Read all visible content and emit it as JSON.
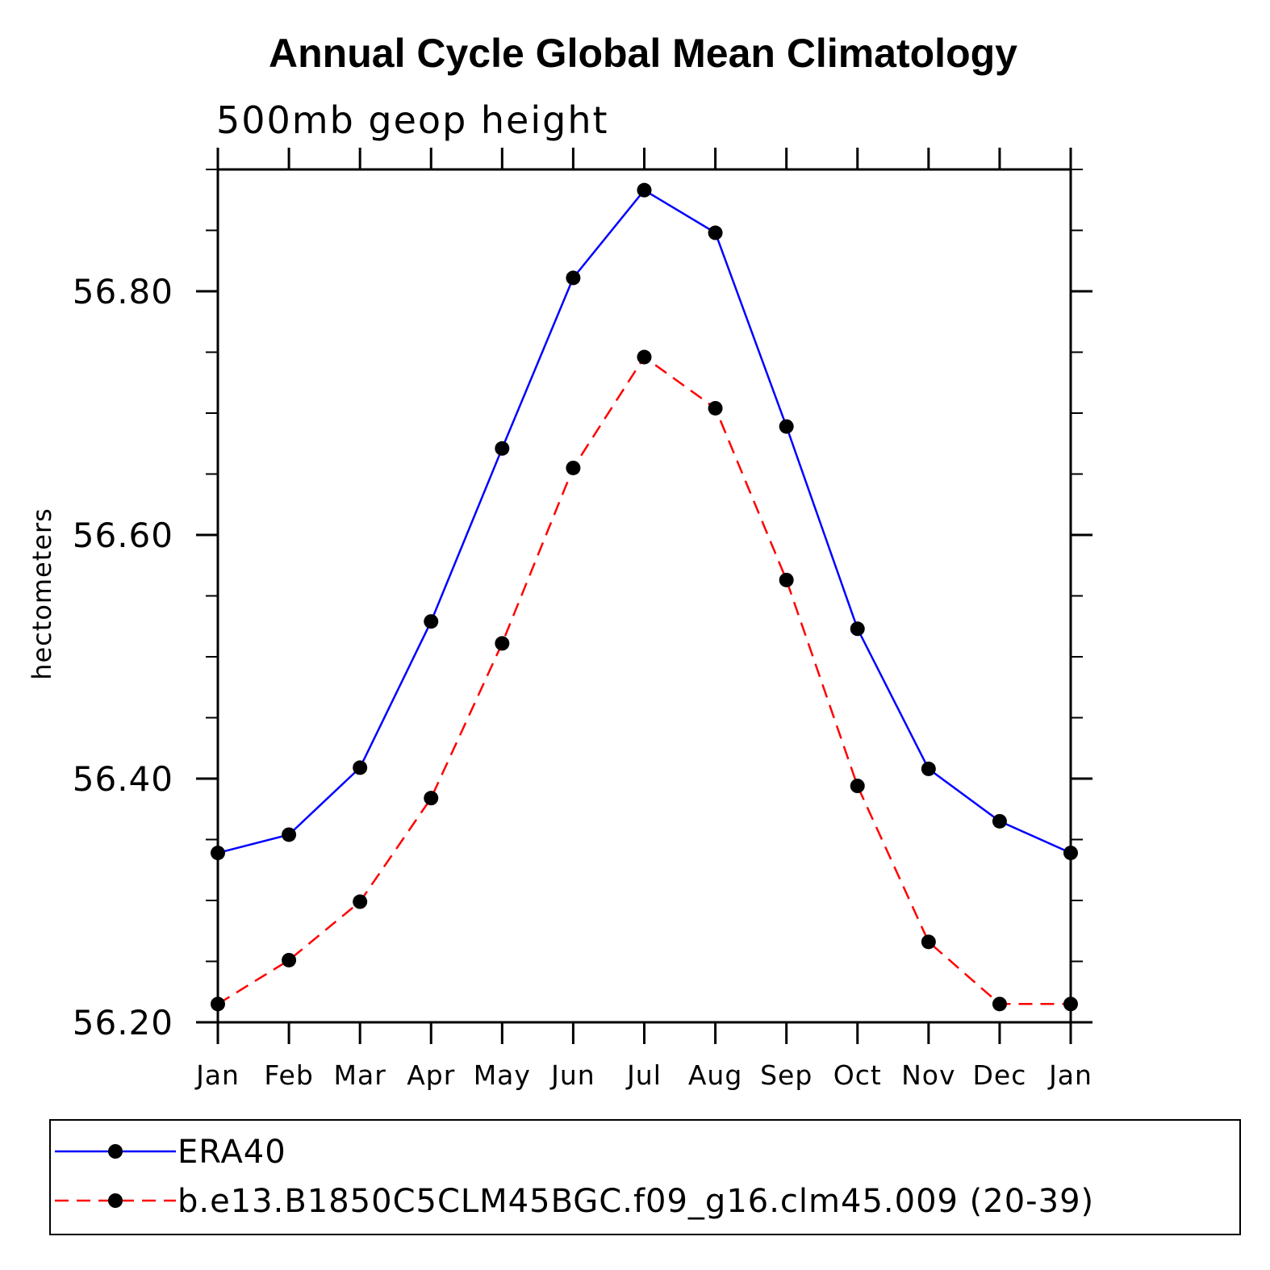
{
  "chart_data": {
    "type": "line",
    "title": "Annual Cycle Global Mean Climatology",
    "subtitle": "500mb geop height",
    "ylabel": "hectometers",
    "xlabel": "",
    "categories": [
      "Jan",
      "Feb",
      "Mar",
      "Apr",
      "May",
      "Jun",
      "Jul",
      "Aug",
      "Sep",
      "Oct",
      "Nov",
      "Dec",
      "Jan"
    ],
    "ylim": [
      56.2,
      56.9
    ],
    "yticks_major": [
      "56.20",
      "56.40",
      "56.60",
      "56.80"
    ],
    "yticks_major_values": [
      56.2,
      56.4,
      56.6,
      56.8
    ],
    "yticks_minor_step": 0.05,
    "grid": false,
    "legend_position": "bottom",
    "series": [
      {
        "name": "ERA40",
        "color": "#0000ff",
        "dash": "solid",
        "marker": "filled-circle",
        "values": [
          56.339,
          56.354,
          56.409,
          56.529,
          56.671,
          56.811,
          56.883,
          56.848,
          56.689,
          56.523,
          56.408,
          56.365,
          56.339
        ]
      },
      {
        "name": "b.e13.B1850C5CLM45BGC.f09_g16.clm45.009 (20-39)",
        "color": "#ff0000",
        "dash": "dashed",
        "marker": "filled-circle",
        "values": [
          56.215,
          56.251,
          56.299,
          56.384,
          56.511,
          56.655,
          56.746,
          56.704,
          56.563,
          56.394,
          56.266,
          56.215,
          56.215
        ]
      }
    ]
  }
}
